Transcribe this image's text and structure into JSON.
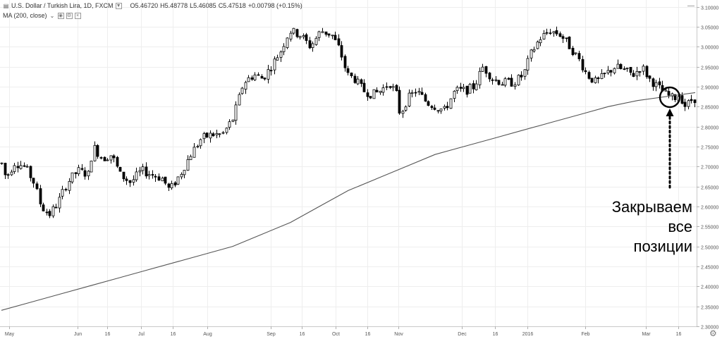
{
  "legend": {
    "symbol_name": "U.S. Dollar / Turkish Lira, 1D, FXCM",
    "open": "O5.46720",
    "high": "H5.48778",
    "low": "L5.46085",
    "close": "C5.47518",
    "change": "+0.00798 (+0.15%)",
    "ma_label": "MA (200, close)"
  },
  "annotation": {
    "line1": "Закрываем",
    "line2": "все",
    "line3": "позиции"
  },
  "colors": {
    "up_candle": "#ffffff",
    "down_candle": "#000000",
    "candle_outline": "#000000",
    "ma_line": "#555555",
    "grid": "#eeeeee"
  },
  "chart_data": {
    "type": "candlestick",
    "title": "U.S. Dollar / Turkish Lira, 1D, FXCM",
    "ylim": [
      2.3,
      3.1
    ],
    "y_scale": "linear",
    "y_axis_position": "right",
    "grid": true,
    "ytick_labels": [
      "3.10000",
      "3.05000",
      "3.00000",
      "2.95000",
      "2.90000",
      "2.85000",
      "2.80000",
      "2.75000",
      "2.70000",
      "2.65000",
      "2.60000",
      "2.55000",
      "2.50000",
      "2.45000",
      "2.40000",
      "2.35000",
      "2.30000"
    ],
    "xtick_labels": [
      "May",
      "Jun",
      "16",
      "Jul",
      "16",
      "Aug",
      "Sep",
      "16",
      "Oct",
      "16",
      "Nov",
      "Dec",
      "16",
      "2016",
      "Feb",
      "Mar",
      "16"
    ],
    "key_candles": [
      {
        "label": "early May",
        "open": 2.74,
        "high": 2.76,
        "low": 2.65,
        "close": 2.69
      },
      {
        "label": "late May low",
        "open": 2.6,
        "high": 2.62,
        "low": 2.56,
        "close": 2.58
      },
      {
        "label": "early Jun high",
        "open": 2.68,
        "high": 2.81,
        "low": 2.65,
        "close": 2.74
      },
      {
        "label": "early Sep",
        "open": 2.93,
        "high": 3.01,
        "low": 2.92,
        "close": 2.97
      },
      {
        "label": "late Sep high",
        "open": 3.04,
        "high": 3.07,
        "low": 3.0,
        "close": 3.05
      },
      {
        "label": "early Nov low",
        "open": 2.85,
        "high": 2.86,
        "low": 2.76,
        "close": 2.83
      },
      {
        "label": "mid Jan high",
        "open": 3.04,
        "high": 3.06,
        "low": 3.02,
        "close": 3.05
      },
      {
        "label": "mid Mar",
        "open": 2.88,
        "high": 2.92,
        "low": 2.84,
        "close": 2.85
      }
    ],
    "series": [
      {
        "name": "MA (200, close)",
        "type": "line",
        "values": [
          2.34,
          2.36,
          2.38,
          2.4,
          2.42,
          2.44,
          2.46,
          2.48,
          2.5,
          2.53,
          2.56,
          2.6,
          2.64,
          2.67,
          2.7,
          2.73,
          2.75,
          2.77,
          2.79,
          2.81,
          2.83,
          2.85,
          2.865,
          2.875,
          2.885
        ]
      }
    ]
  }
}
